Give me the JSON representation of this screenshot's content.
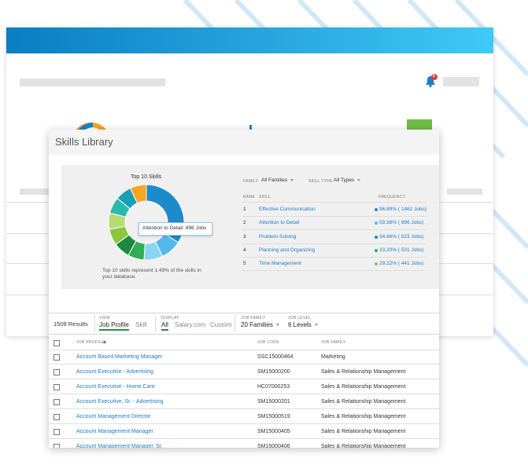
{
  "back_window": {
    "badge": "5"
  },
  "panel": {
    "title": "Skills Library"
  },
  "summary": {
    "chart_title": "Top 10 Skills",
    "tooltip": "Attention to Detail: 896 Jobs",
    "caption": "Top 10 skills represent 1.49% of the skills in your database.",
    "donut": {
      "values": [
        34,
        9,
        8,
        7,
        7,
        7,
        7,
        7,
        7,
        7
      ],
      "colors": [
        "#1d8bcb",
        "#53b9ea",
        "#8ad6f2",
        "#2fae55",
        "#1c8a3e",
        "#8cc63f",
        "#b9db74",
        "#2bb9a9",
        "#19a0b6",
        "#f5a623"
      ]
    }
  },
  "filters": [
    {
      "label": "FAMILY",
      "value": "All Families"
    },
    {
      "label": "SKILL TYPE",
      "value": "All Types"
    }
  ],
  "skills_table": {
    "columns": [
      "RANK",
      "SKILL",
      "FREQUENCY"
    ],
    "rows": [
      [
        "1",
        "Effective Communication",
        "96.89% ( 1462 Jobs)"
      ],
      [
        "2",
        "Attention to Detail",
        "59.38% ( 896 Jobs)"
      ],
      [
        "3",
        "Problem Solving",
        "34.66% ( 523 Jobs)"
      ],
      [
        "4",
        "Planning and Organizing",
        "33.20% ( 501 Jobs)"
      ],
      [
        "5",
        "Time Management",
        "29.22% ( 441 Jobs)"
      ]
    ]
  },
  "toolbar": {
    "results": "1509 Results",
    "view": {
      "label": "VIEW",
      "options": [
        "Job Profile",
        "Skill"
      ]
    },
    "display": {
      "label": "DISPLAY",
      "options": [
        "All",
        "Salary.com",
        "Custom"
      ]
    },
    "job_family": {
      "label": "JOB FAMILY",
      "value": "20 Families"
    },
    "job_level": {
      "label": "JOB LEVEL",
      "value": "6 Levels"
    }
  },
  "profiles_table": {
    "columns": [
      "JOB PROFILE",
      "JOB CODE",
      "JOB FAMILY"
    ],
    "rows": [
      [
        "Account Based Marketing Manager",
        "SSC15000464",
        "Marketing"
      ],
      [
        "Account Executive - Advertising",
        "SM15000200",
        "Sales & Relationship Management"
      ],
      [
        "Account Executive - Home Care",
        "HC07000253",
        "Sales & Relationship Management"
      ],
      [
        "Account Executive, Sr. - Advertising",
        "SM15000201",
        "Sales & Relationship Management"
      ],
      [
        "Account Management Director",
        "SM15000519",
        "Sales & Relationship Management"
      ],
      [
        "Account Management Manager",
        "SM15000405",
        "Sales & Relationship Management"
      ],
      [
        "Account Management Manager, Sr.",
        "SM15000406",
        "Sales & Relationship Management"
      ]
    ]
  }
}
